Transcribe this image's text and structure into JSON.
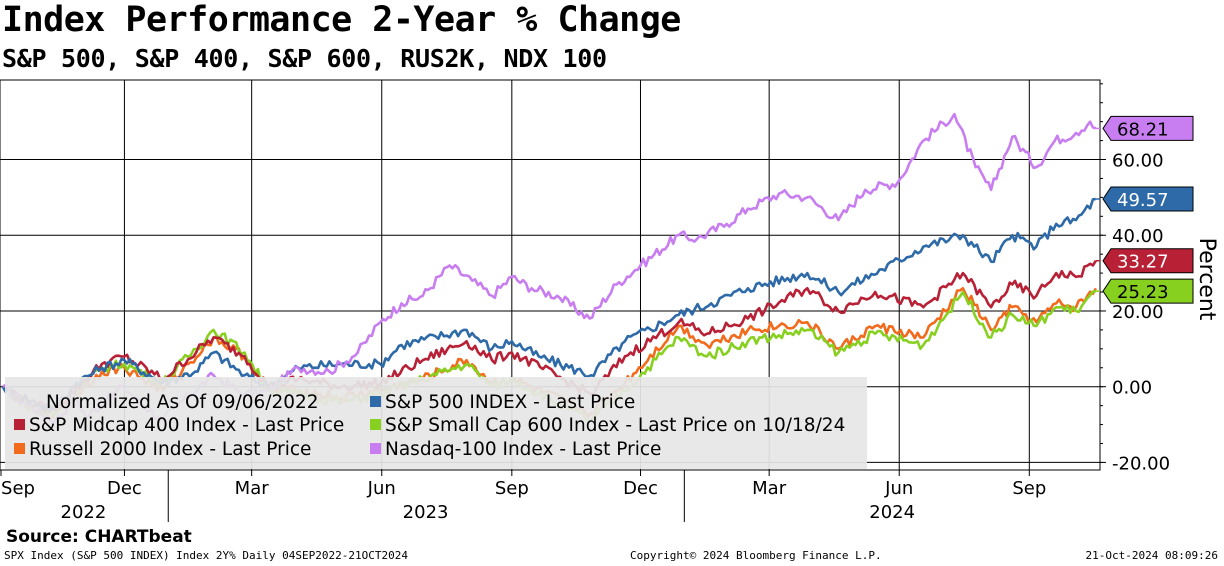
{
  "title": "Index Performance 2-Year % Change",
  "subtitle": "S&P 500, S&P 400, S&P 600, RUS2K, NDX 100",
  "source": "Source: CHARTbeat",
  "footer": {
    "left": "SPX Index (S&P 500 INDEX) Index 2Y%  Daily 04SEP2022-21OCT2024",
    "center": "Copyright© 2024 Bloomberg Finance L.P.",
    "right": "21-Oct-2024 08:09:26"
  },
  "chart_data": {
    "type": "line",
    "ylabel": "Percent",
    "ylim": [
      -22,
      81
    ],
    "yticks": [
      -20,
      0,
      20,
      40,
      60
    ],
    "ytick_labels": [
      "-20.00",
      "0.00",
      "20.00",
      "40.00",
      "60.00"
    ],
    "xlim": [
      "2022-09-04",
      "2024-10-21"
    ],
    "x_month_ticks": [
      {
        "date": "2022-09-01",
        "label": "Sep"
      },
      {
        "date": "2022-12-01",
        "label": "Dec"
      },
      {
        "date": "2023-03-01",
        "label": "Mar"
      },
      {
        "date": "2023-06-01",
        "label": "Jun"
      },
      {
        "date": "2023-09-01",
        "label": "Sep"
      },
      {
        "date": "2023-12-01",
        "label": "Dec"
      },
      {
        "date": "2024-03-01",
        "label": "Mar"
      },
      {
        "date": "2024-06-01",
        "label": "Jun"
      },
      {
        "date": "2024-09-01",
        "label": "Sep"
      }
    ],
    "x_year_labels": [
      {
        "label": "2022",
        "from": "2022-09-04",
        "to": "2022-12-31"
      },
      {
        "label": "2023",
        "from": "2023-01-01",
        "to": "2023-12-31"
      },
      {
        "label": "2024",
        "from": "2024-01-01",
        "to": "2024-10-21"
      }
    ],
    "x_year_dividers": [
      "2023-01-01",
      "2024-01-01"
    ],
    "grid": true,
    "legend_position": "bottom-left",
    "legend_header": "Normalized As Of 09/06/2022",
    "series": [
      {
        "name": "Nasdaq-100 Index - Last Price",
        "color": "#c87ef0",
        "last": "68.21",
        "points": [
          [
            "2022-09-06",
            0
          ],
          [
            "2022-09-20",
            -4
          ],
          [
            "2022-10-13",
            -9
          ],
          [
            "2022-10-28",
            -3
          ],
          [
            "2022-11-04",
            -8
          ],
          [
            "2022-11-30",
            0
          ],
          [
            "2022-12-28",
            -9
          ],
          [
            "2023-01-10",
            -4
          ],
          [
            "2023-02-02",
            3
          ],
          [
            "2023-02-24",
            -2
          ],
          [
            "2023-03-13",
            -1
          ],
          [
            "2023-04-03",
            5
          ],
          [
            "2023-04-25",
            4
          ],
          [
            "2023-05-15",
            9
          ],
          [
            "2023-05-31",
            17
          ],
          [
            "2023-06-15",
            22
          ],
          [
            "2023-06-30",
            24
          ],
          [
            "2023-07-19",
            32
          ],
          [
            "2023-08-04",
            28
          ],
          [
            "2023-08-18",
            24
          ],
          [
            "2023-09-01",
            29
          ],
          [
            "2023-09-15",
            26
          ],
          [
            "2023-10-03",
            24
          ],
          [
            "2023-10-26",
            18
          ],
          [
            "2023-11-14",
            27
          ],
          [
            "2023-12-01",
            32
          ],
          [
            "2023-12-28",
            40
          ],
          [
            "2024-01-10",
            39
          ],
          [
            "2024-01-31",
            43
          ],
          [
            "2024-02-15",
            47
          ],
          [
            "2024-03-08",
            51
          ],
          [
            "2024-03-28",
            50
          ],
          [
            "2024-04-19",
            44
          ],
          [
            "2024-05-08",
            52
          ],
          [
            "2024-05-31",
            54
          ],
          [
            "2024-06-18",
            65
          ],
          [
            "2024-07-10",
            72
          ],
          [
            "2024-07-25",
            58
          ],
          [
            "2024-08-05",
            52
          ],
          [
            "2024-08-20",
            66
          ],
          [
            "2024-09-06",
            58
          ],
          [
            "2024-09-19",
            65
          ],
          [
            "2024-10-04",
            67
          ],
          [
            "2024-10-14",
            70
          ],
          [
            "2024-10-18",
            68.21
          ]
        ]
      },
      {
        "name": "S&P 500 INDEX - Last Price",
        "color": "#2e6aa8",
        "last": "49.57",
        "points": [
          [
            "2022-09-06",
            0
          ],
          [
            "2022-09-20",
            -3
          ],
          [
            "2022-10-12",
            -6
          ],
          [
            "2022-10-28",
            1
          ],
          [
            "2022-11-15",
            5
          ],
          [
            "2022-12-01",
            7
          ],
          [
            "2022-12-28",
            1
          ],
          [
            "2023-01-20",
            4
          ],
          [
            "2023-02-02",
            9
          ],
          [
            "2023-02-24",
            3
          ],
          [
            "2023-03-13",
            0
          ],
          [
            "2023-04-03",
            5
          ],
          [
            "2023-05-01",
            6
          ],
          [
            "2023-05-31",
            6
          ],
          [
            "2023-06-15",
            11
          ],
          [
            "2023-07-31",
            15
          ],
          [
            "2023-08-18",
            10
          ],
          [
            "2023-09-01",
            12
          ],
          [
            "2023-09-20",
            8
          ],
          [
            "2023-10-27",
            3
          ],
          [
            "2023-11-20",
            12
          ],
          [
            "2023-12-28",
            19
          ],
          [
            "2024-01-20",
            22
          ],
          [
            "2024-02-15",
            26
          ],
          [
            "2024-03-28",
            30
          ],
          [
            "2024-04-19",
            25
          ],
          [
            "2024-05-20",
            31
          ],
          [
            "2024-06-18",
            37
          ],
          [
            "2024-07-16",
            40
          ],
          [
            "2024-08-05",
            33
          ],
          [
            "2024-08-20",
            40
          ],
          [
            "2024-09-06",
            37
          ],
          [
            "2024-09-20",
            43
          ],
          [
            "2024-10-04",
            44
          ],
          [
            "2024-10-18",
            49.57
          ]
        ]
      },
      {
        "name": "S&P Midcap 400 Index - Last Price",
        "color": "#b82036",
        "last": "33.27",
        "points": [
          [
            "2022-09-06",
            0
          ],
          [
            "2022-09-30",
            -5
          ],
          [
            "2022-10-13",
            -6
          ],
          [
            "2022-11-15",
            6
          ],
          [
            "2022-12-01",
            8
          ],
          [
            "2022-12-28",
            2
          ],
          [
            "2023-02-02",
            13
          ],
          [
            "2023-02-24",
            8
          ],
          [
            "2023-03-13",
            0
          ],
          [
            "2023-04-03",
            2
          ],
          [
            "2023-05-04",
            0
          ],
          [
            "2023-05-31",
            1
          ],
          [
            "2023-06-30",
            7
          ],
          [
            "2023-07-31",
            12
          ],
          [
            "2023-08-18",
            7
          ],
          [
            "2023-09-01",
            9
          ],
          [
            "2023-10-27",
            -2
          ],
          [
            "2023-11-20",
            8
          ],
          [
            "2023-12-28",
            17
          ],
          [
            "2024-01-17",
            14
          ],
          [
            "2024-02-15",
            18
          ],
          [
            "2024-03-28",
            26
          ],
          [
            "2024-04-19",
            20
          ],
          [
            "2024-05-15",
            25
          ],
          [
            "2024-06-18",
            21
          ],
          [
            "2024-07-16",
            30
          ],
          [
            "2024-08-05",
            21
          ],
          [
            "2024-08-20",
            27
          ],
          [
            "2024-09-06",
            24
          ],
          [
            "2024-09-20",
            30
          ],
          [
            "2024-10-04",
            29
          ],
          [
            "2024-10-18",
            33.27
          ]
        ]
      },
      {
        "name": "S&P Small Cap 600 Index - Last Price on 10/18/24",
        "color": "#88d020",
        "last": "25.23",
        "points": [
          [
            "2022-09-06",
            0
          ],
          [
            "2022-09-30",
            -7
          ],
          [
            "2022-10-13",
            -7
          ],
          [
            "2022-11-15",
            5
          ],
          [
            "2022-12-01",
            6
          ],
          [
            "2022-12-28",
            1
          ],
          [
            "2023-02-02",
            15
          ],
          [
            "2023-02-24",
            9
          ],
          [
            "2023-03-13",
            -1
          ],
          [
            "2023-04-03",
            -2
          ],
          [
            "2023-05-04",
            -4
          ],
          [
            "2023-05-31",
            -2
          ],
          [
            "2023-06-30",
            2
          ],
          [
            "2023-07-31",
            6
          ],
          [
            "2023-08-18",
            0
          ],
          [
            "2023-09-01",
            2
          ],
          [
            "2023-10-27",
            -9
          ],
          [
            "2023-11-20",
            -1
          ],
          [
            "2023-12-28",
            13
          ],
          [
            "2024-01-17",
            8
          ],
          [
            "2024-02-15",
            12
          ],
          [
            "2024-03-28",
            15
          ],
          [
            "2024-04-19",
            9
          ],
          [
            "2024-05-15",
            14
          ],
          [
            "2024-06-18",
            11
          ],
          [
            "2024-07-16",
            25
          ],
          [
            "2024-08-05",
            13
          ],
          [
            "2024-08-20",
            19
          ],
          [
            "2024-09-06",
            16
          ],
          [
            "2024-09-20",
            21
          ],
          [
            "2024-10-04",
            20
          ],
          [
            "2024-10-18",
            25.23
          ]
        ]
      },
      {
        "name": "Russell 2000 Index - Last Price",
        "color": "#f26b1d",
        "last": "",
        "points": [
          [
            "2022-09-06",
            0
          ],
          [
            "2022-09-30",
            -7
          ],
          [
            "2022-10-13",
            -7
          ],
          [
            "2022-11-15",
            4
          ],
          [
            "2022-12-01",
            5
          ],
          [
            "2022-12-28",
            -1
          ],
          [
            "2023-02-02",
            13
          ],
          [
            "2023-02-24",
            8
          ],
          [
            "2023-03-13",
            -1
          ],
          [
            "2023-04-03",
            -1
          ],
          [
            "2023-05-04",
            -3
          ],
          [
            "2023-05-31",
            -1
          ],
          [
            "2023-06-30",
            2
          ],
          [
            "2023-07-31",
            7
          ],
          [
            "2023-08-18",
            1
          ],
          [
            "2023-09-01",
            2
          ],
          [
            "2023-10-27",
            -7
          ],
          [
            "2023-11-20",
            1
          ],
          [
            "2023-12-28",
            16
          ],
          [
            "2024-01-17",
            11
          ],
          [
            "2024-02-15",
            15
          ],
          [
            "2024-03-28",
            17
          ],
          [
            "2024-04-19",
            10
          ],
          [
            "2024-05-15",
            16
          ],
          [
            "2024-06-18",
            13
          ],
          [
            "2024-07-16",
            26
          ],
          [
            "2024-08-05",
            15
          ],
          [
            "2024-08-20",
            21
          ],
          [
            "2024-09-06",
            17
          ],
          [
            "2024-09-20",
            22
          ],
          [
            "2024-10-04",
            21
          ],
          [
            "2024-10-18",
            26
          ]
        ]
      }
    ]
  }
}
